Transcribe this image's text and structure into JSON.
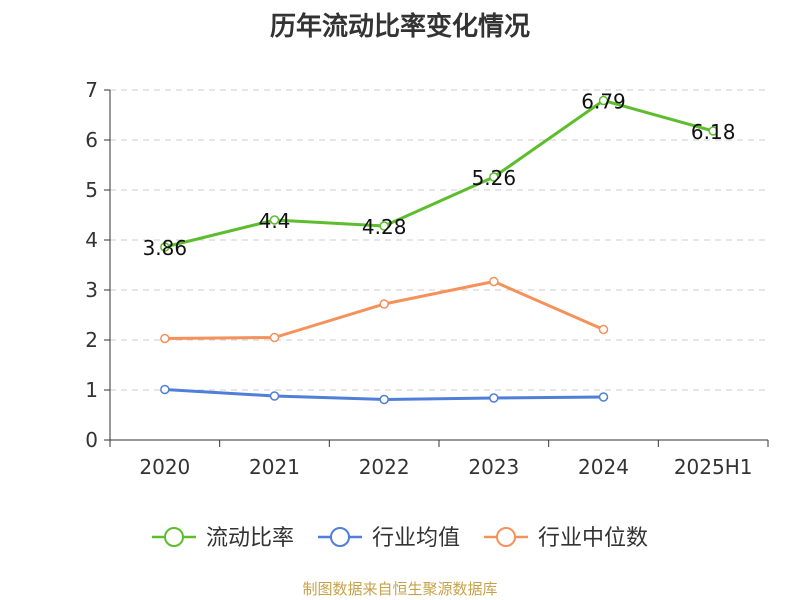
{
  "chart_data": {
    "type": "line",
    "title": "历年流动比率变化情况",
    "categories": [
      "2020",
      "2021",
      "2022",
      "2023",
      "2024",
      "2025H1"
    ],
    "y_ticks": [
      0,
      1,
      2,
      3,
      4,
      5,
      6,
      7
    ],
    "ylim": [
      0,
      7
    ],
    "grid": true,
    "legend_position": "bottom",
    "series": [
      {
        "name": "流动比率",
        "color": "#5cbd2d",
        "values": [
          3.86,
          4.4,
          4.28,
          5.26,
          6.79,
          6.18
        ],
        "labels": [
          "3.86",
          "4.4",
          "4.28",
          "5.26",
          "6.79",
          "6.18"
        ]
      },
      {
        "name": "行业均值",
        "color": "#4f7fd8",
        "values": [
          1.01,
          0.88,
          0.81,
          0.84,
          0.86,
          null
        ]
      },
      {
        "name": "行业中位数",
        "color": "#f5915a",
        "values": [
          2.03,
          2.05,
          2.72,
          3.17,
          2.21,
          null
        ]
      }
    ]
  },
  "source": "制图数据来自恒生聚源数据库"
}
